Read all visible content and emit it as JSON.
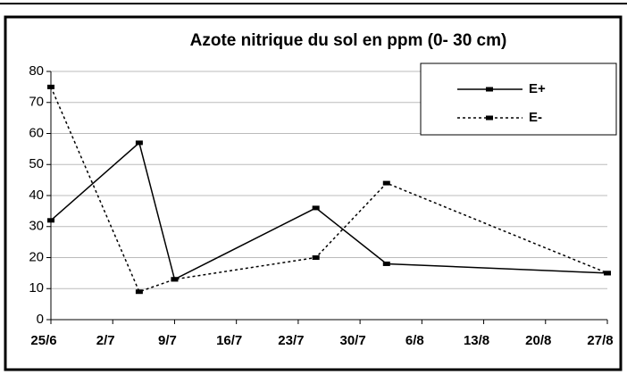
{
  "chart_data": {
    "type": "line",
    "title": "Azote nitrique du sol en ppm (0- 30 cm)",
    "xlim": [
      0,
      63
    ],
    "xticks": [
      {
        "value": 0,
        "label": "25/6"
      },
      {
        "value": 7,
        "label": "2/7"
      },
      {
        "value": 14,
        "label": "9/7"
      },
      {
        "value": 21,
        "label": "16/7"
      },
      {
        "value": 28,
        "label": "23/7"
      },
      {
        "value": 35,
        "label": "30/7"
      },
      {
        "value": 42,
        "label": "6/8"
      },
      {
        "value": 49,
        "label": "13/8"
      },
      {
        "value": 56,
        "label": "20/8"
      },
      {
        "value": 63,
        "label": "27/8"
      }
    ],
    "ylim": [
      0,
      80
    ],
    "yticks": [
      0,
      10,
      20,
      30,
      40,
      50,
      60,
      70,
      80
    ],
    "grid": true,
    "series": [
      {
        "name": "E+",
        "color": "#000000",
        "dash": "solid",
        "x": [
          0,
          10,
          14,
          30,
          38,
          63
        ],
        "values": [
          32,
          57,
          13,
          36,
          18,
          15
        ]
      },
      {
        "name": "E-",
        "color": "#000000",
        "dash": "dotted",
        "x": [
          0,
          10,
          14,
          30,
          38,
          63
        ],
        "values": [
          75,
          9,
          13,
          20,
          44,
          15
        ]
      }
    ]
  }
}
